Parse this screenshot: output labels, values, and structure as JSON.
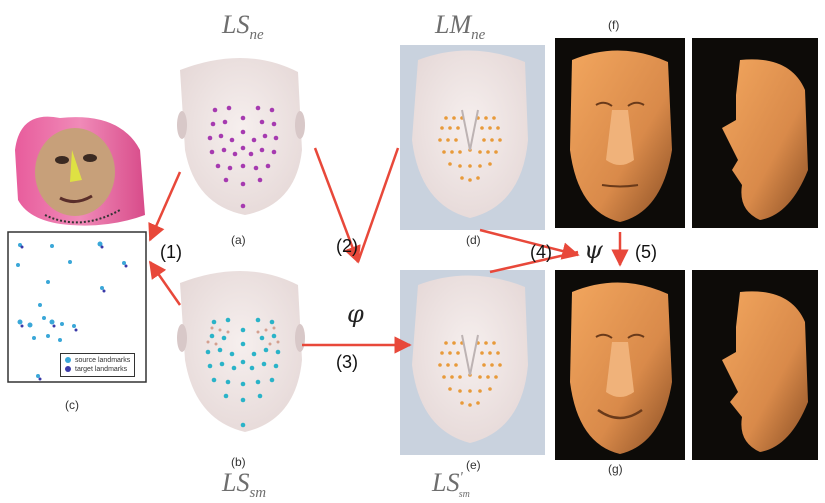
{
  "labels": {
    "ls_ne": {
      "base": "LS",
      "sub": "ne"
    },
    "lm_ne": {
      "base": "LM",
      "sub": "ne"
    },
    "ls_sm": {
      "base": "LS",
      "sub": "sm"
    },
    "ls_prime_sm": {
      "base": "LS",
      "prime": "'",
      "sub": "sm"
    }
  },
  "panels": {
    "a": "(a)",
    "b": "(b)",
    "c": "(c)",
    "d": "(d)",
    "e": "(e)",
    "f": "(f)",
    "g": "(g)"
  },
  "steps": {
    "s1": "(1)",
    "s2": "(2)",
    "s3": "(3)",
    "s4": "(4)",
    "s5": "(5)"
  },
  "symbols": {
    "phi": "φ",
    "psi": "ψ"
  },
  "legend": {
    "source": "source landmarks",
    "target": "target landmarks"
  },
  "colors": {
    "arrow": "#e8483a",
    "landmark_ne": "#a63ab0",
    "landmark_sm": "#2ab3c8",
    "mesh_points": "#e89a3a",
    "render_bg": "#0d0b08",
    "skin": "#d98a4a"
  }
}
